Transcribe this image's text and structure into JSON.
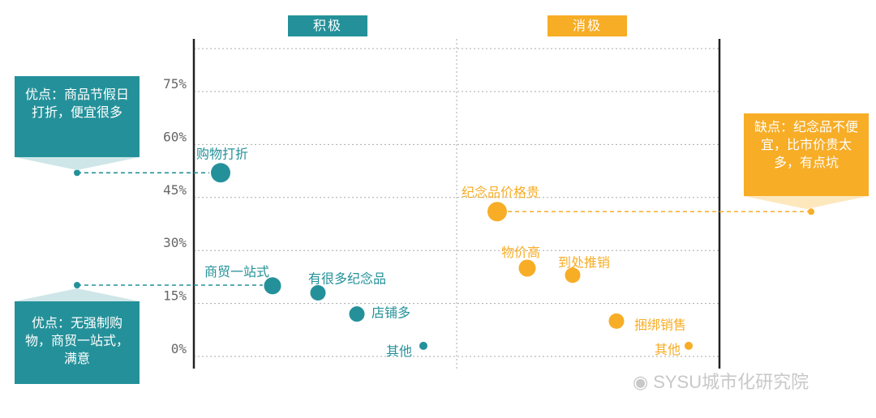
{
  "chart_data": {
    "type": "scatter",
    "title": "",
    "xlabel": "",
    "ylabel": "",
    "ylim": [
      0,
      0.85
    ],
    "yticks": [
      {
        "value": 0,
        "label": "0%"
      },
      {
        "value": 0.15,
        "label": "15%"
      },
      {
        "value": 0.3,
        "label": "30%"
      },
      {
        "value": 0.45,
        "label": "45%"
      },
      {
        "value": 0.6,
        "label": "60%"
      },
      {
        "value": 0.75,
        "label": "75%"
      }
    ],
    "grid": true,
    "groups": [
      {
        "name": "积极",
        "color": "#24919a"
      },
      {
        "name": "消极",
        "color": "#f7ad26"
      }
    ],
    "series": [
      {
        "name": "积极",
        "color": "#24919a",
        "points": [
          {
            "label": "购物打折",
            "x": 1,
            "y": 0.52,
            "size": 3
          },
          {
            "label": "商贸一站式",
            "x": 2,
            "y": 0.2,
            "size": 2
          },
          {
            "label": "有很多纪念品",
            "x": 3,
            "y": 0.18,
            "size": 1.6
          },
          {
            "label": "店铺多",
            "x": 4,
            "y": 0.12,
            "size": 1.6
          },
          {
            "label": "其他",
            "x": 5,
            "y": 0.03,
            "size": 1
          }
        ]
      },
      {
        "name": "消极",
        "color": "#f7ad26",
        "points": [
          {
            "label": "纪念品价格贵",
            "x": 6,
            "y": 0.41,
            "size": 3
          },
          {
            "label": "物价高",
            "x": 7,
            "y": 0.25,
            "size": 2
          },
          {
            "label": "到处推销",
            "x": 8,
            "y": 0.23,
            "size": 1.8
          },
          {
            "label": "捆绑销售",
            "x": 9,
            "y": 0.1,
            "size": 1.8
          },
          {
            "label": "其他",
            "x": 10,
            "y": 0.03,
            "size": 1
          }
        ]
      }
    ]
  },
  "annotations": {
    "callout_left_top": "优点：商品节假日打折，便宜很多",
    "callout_left_bottom": "优点：无强制购物，商贸一站式，满意",
    "callout_right": "缺点：纪念品不便宜，比市价贵太多，有点坑"
  },
  "watermark": {
    "text": "SYSU城市化研究院",
    "icon": "wechat-icon"
  }
}
